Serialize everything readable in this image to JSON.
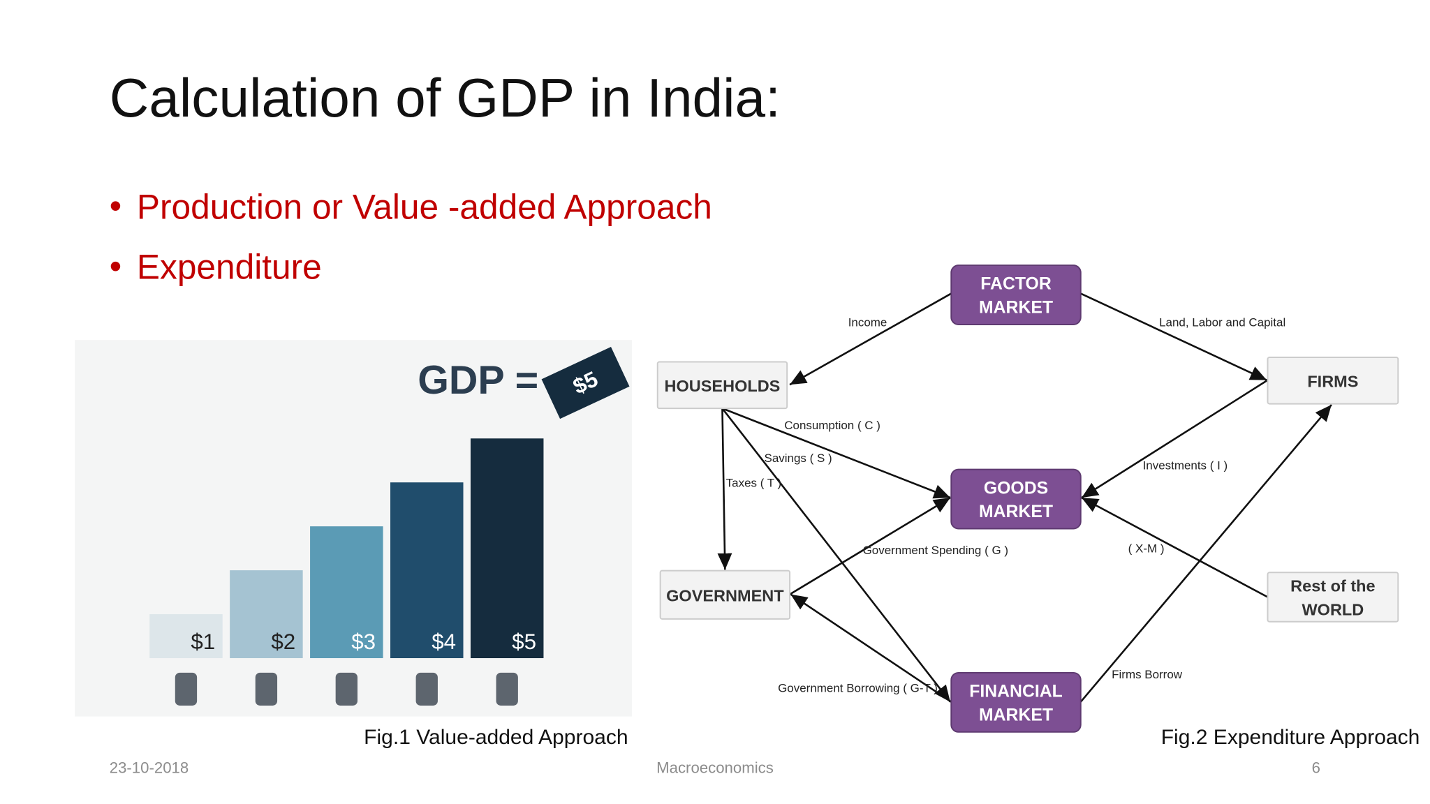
{
  "header": {
    "title": "Calculation of GDP in India:"
  },
  "bullets": [
    "Production or Value -added Approach",
    "Expenditure"
  ],
  "chart_data": {
    "type": "bar",
    "heading": "GDP =",
    "badge": "$5",
    "values": [
      1,
      2,
      3,
      4,
      5
    ],
    "value_labels": [
      "$1",
      "$2",
      "$3",
      "$4",
      "$5"
    ],
    "colors": [
      "#dde6ea",
      "#a5c3d2",
      "#5b9bb5",
      "#204d6c",
      "#152c3e"
    ]
  },
  "captions": [
    "Fig.1 Value-added Approach",
    "Fig.2 Expenditure Approach"
  ],
  "diagram": {
    "nodes": [
      {
        "label": [
          "FACTOR",
          "MARKET"
        ]
      },
      {
        "label": [
          "HOUSEHOLDS"
        ]
      },
      {
        "label": [
          "FIRMS"
        ]
      },
      {
        "label": [
          "GOODS",
          "MARKET"
        ]
      },
      {
        "label": [
          "GOVERNMENT"
        ]
      },
      {
        "label": [
          "Rest of the",
          "WORLD"
        ]
      },
      {
        "label": [
          "FINANCIAL",
          "MARKET"
        ]
      }
    ],
    "edges": [
      "Income",
      "Land, Labor and Capital",
      "Consumption ( C )",
      "Savings ( S )",
      "Taxes ( T )",
      "Investments ( I )",
      "Government Spending ( G )",
      "( X-M )",
      "Government Borrowing ( G-T )",
      "Firms Borrow"
    ]
  },
  "footer": {
    "date": "23-10-2018",
    "center": "Macroeconomics",
    "page": "6"
  }
}
